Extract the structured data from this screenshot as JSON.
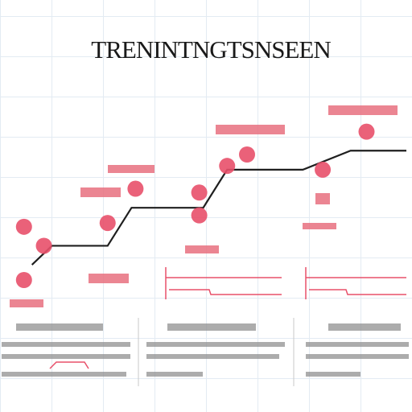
{
  "chart_data": {
    "type": "line",
    "title": "TRENINTNGTSNSEEN",
    "xlim": [
      0,
      10
    ],
    "ylim": [
      2,
      7.5
    ],
    "grid": true,
    "series": [
      {
        "color": "#1f1f1f",
        "mode": "line",
        "x": [
          0.6,
          1.1,
          2.5,
          3.1,
          4.9,
          5.5,
          7.4,
          8.6,
          10
        ],
        "values": [
          3.5,
          4,
          4,
          5,
          5,
          6,
          6,
          6.5,
          6.5
        ]
      },
      {
        "color": "#e8506a",
        "mode": "markers",
        "x": [
          0.4,
          0.4,
          0.9,
          2.5,
          3.2,
          4.8,
          4.8,
          6,
          5.5,
          7.9,
          9
        ],
        "values": [
          4.5,
          3.1,
          4,
          4.6,
          5.5,
          5.4,
          4.8,
          6.4,
          6.1,
          6,
          7
        ]
      }
    ]
  }
}
